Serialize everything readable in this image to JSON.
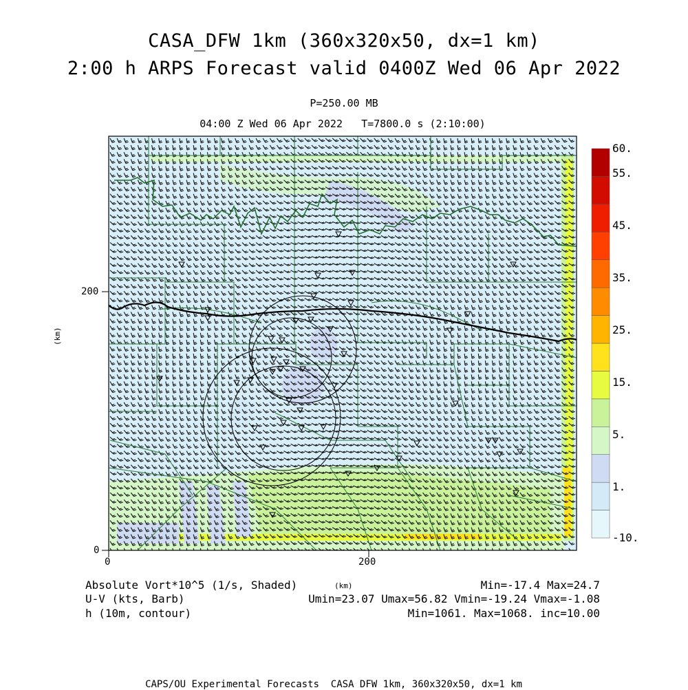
{
  "title": {
    "line1": "CASA_DFW 1km (360x320x50, dx=1 km)",
    "line2": "2:00 h ARPS Forecast valid 0400Z Wed 06 Apr 2022",
    "level": "P=250.00 MB",
    "valid_time": "04:00 Z Wed 06 Apr 2022   T=7800.0 s (2:10:00)"
  },
  "axes": {
    "x_ticks": [
      "0",
      "200"
    ],
    "y_ticks": [
      "0",
      "200"
    ],
    "x_unit": "(km)",
    "y_unit": "(km)",
    "x_range_km": [
      0,
      360
    ],
    "y_range_km": [
      0,
      320
    ]
  },
  "colorbar": {
    "labels": [
      "60.",
      "55.",
      "45.",
      "35.",
      "25.",
      "15.",
      "5.",
      "1.",
      "-10."
    ],
    "colors": [
      "#e6f7fb",
      "#d4eaf7",
      "#cfdaf3",
      "#d5f6c6",
      "#c9f29a",
      "#e7fb41",
      "#ffe11c",
      "#ffb400",
      "#ff8c00",
      "#ff6a00",
      "#ff4000",
      "#f01e00",
      "#d20c00",
      "#b20000"
    ]
  },
  "legend": {
    "vort_label": "Absolute Vort*10^5 (1/s, Shaded)",
    "vort_stats": "Min=-17.4 Max=24.7",
    "wind_label": "U-V (kts, Barb)",
    "wind_stats": "Umin=23.07 Umax=56.82 Vmin=-19.24 Vmax=-1.08",
    "height_label": "h (10m, contour)",
    "height_stats": "Min=1061. Max=1068. inc=10.00",
    "center_unit": "(km)"
  },
  "footer": "CAPS/OU Experimental Forecasts  CASA DFW 1km, 360x320x50, dx=1 km"
}
